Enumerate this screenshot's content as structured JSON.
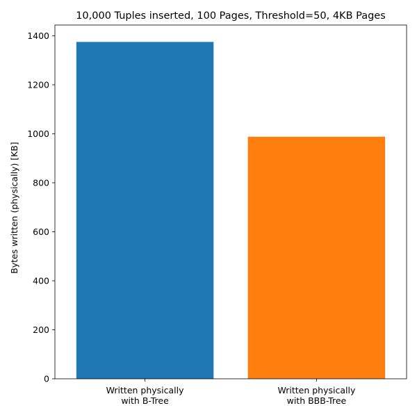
{
  "chart_data": {
    "type": "bar",
    "title": "10,000 Tuples inserted, 100 Pages, Threshold=50, 4KB Pages",
    "xlabel": "",
    "ylabel": "Bytes written (physically) [KB]",
    "categories": [
      "Written physically\nwith B-Tree",
      "Written physically\nwith BBB-Tree"
    ],
    "values": [
      1375,
      988
    ],
    "colors": [
      "#1f77b4",
      "#ff7f0e"
    ],
    "ylim": [
      0,
      1444
    ],
    "yticks": [
      0,
      200,
      400,
      600,
      800,
      1000,
      1200,
      1400
    ],
    "grid": false,
    "legend": "none"
  }
}
